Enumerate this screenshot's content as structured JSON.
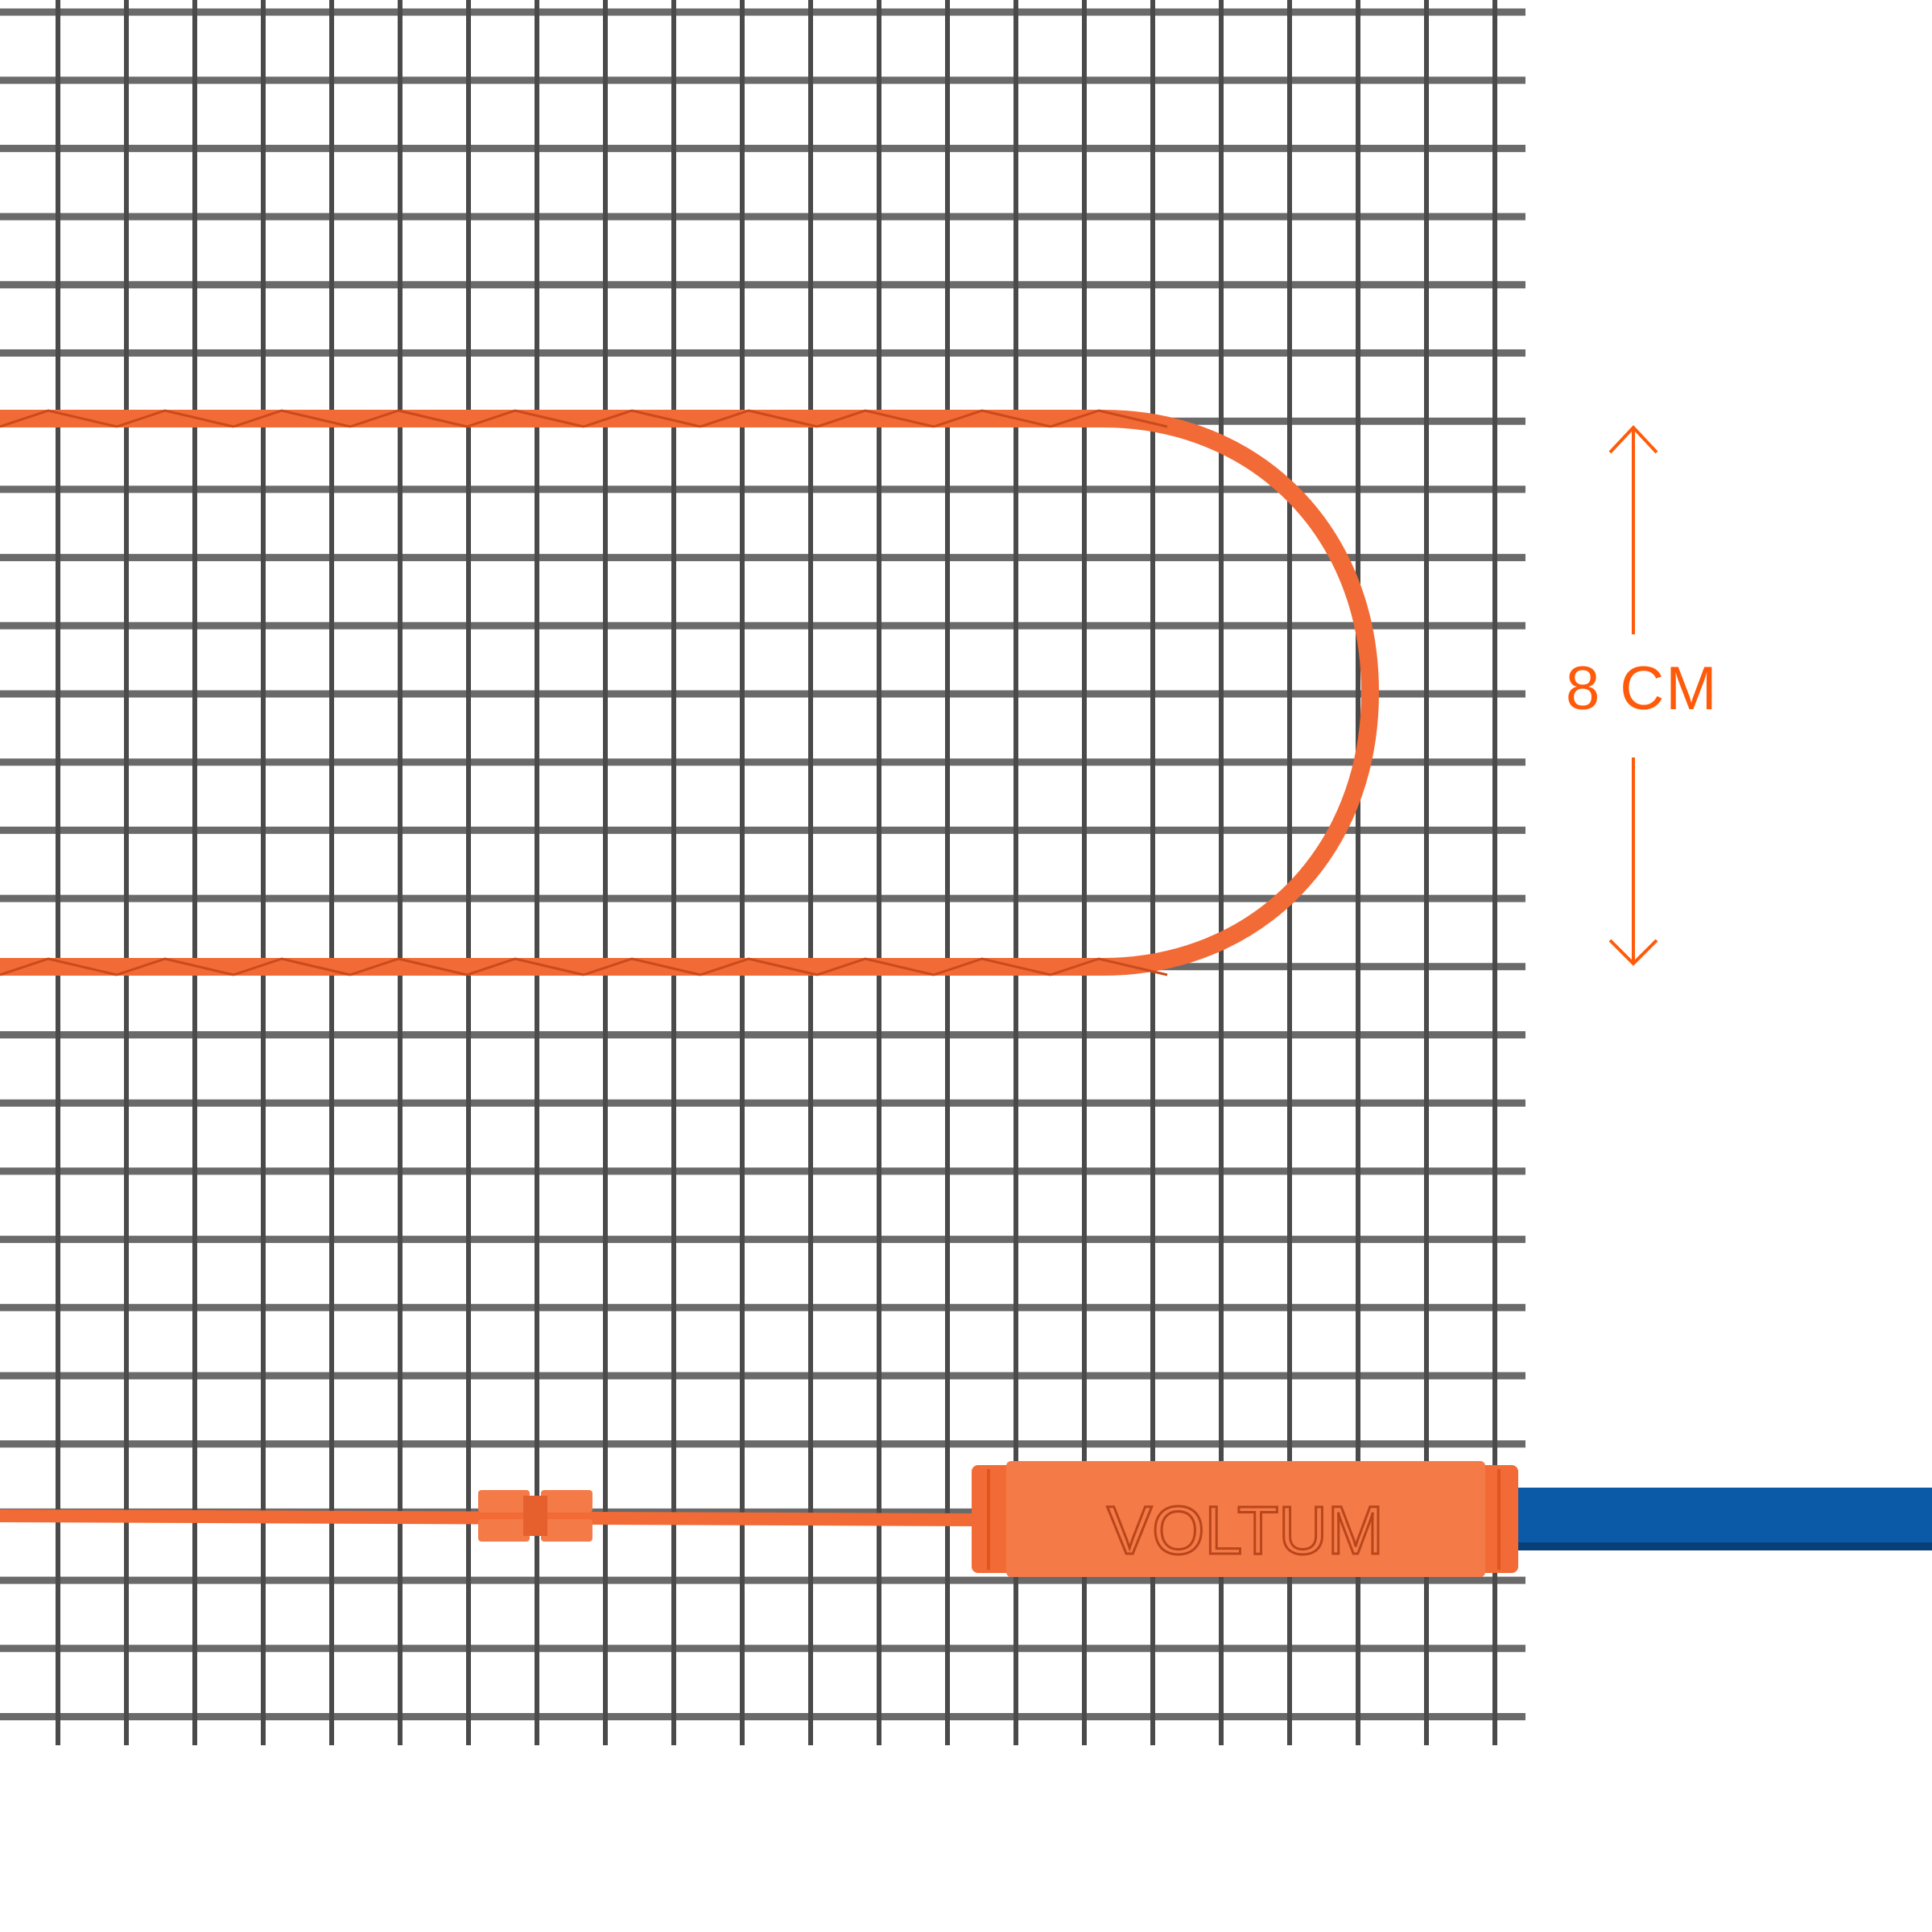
{
  "dimension": {
    "label": "8 CM"
  },
  "brand": {
    "logo_text": "VOLTUM"
  },
  "colors": {
    "mesh": "#5a5a5a",
    "heating_cable": "#f26a35",
    "connector": "#f47a48",
    "power_cable": "#0a5aa8",
    "dimension_accent": "#ff5a0a"
  }
}
